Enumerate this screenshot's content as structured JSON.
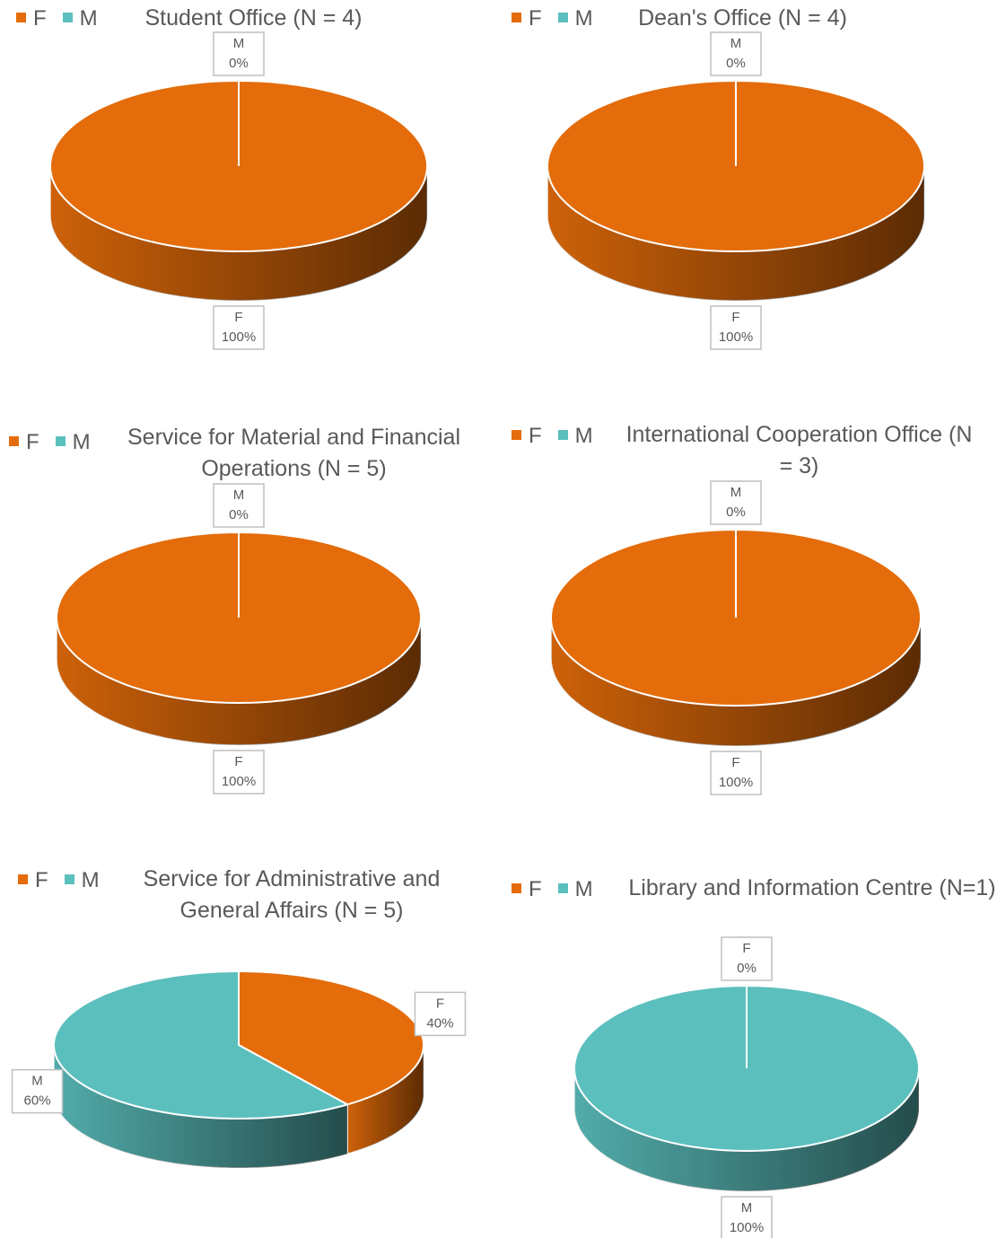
{
  "chart_data": [
    {
      "type": "pie",
      "title": "Student Office (N = 4)",
      "categories": [
        "F",
        "M"
      ],
      "values": [
        100,
        0
      ],
      "value_labels": [
        "100%",
        "0%"
      ],
      "colors": [
        "#e46c0a",
        "#5bbfbd"
      ]
    },
    {
      "type": "pie",
      "title": "Dean's Office (N = 4)",
      "categories": [
        "F",
        "M"
      ],
      "values": [
        100,
        0
      ],
      "value_labels": [
        "100%",
        "0%"
      ],
      "colors": [
        "#e46c0a",
        "#5bbfbd"
      ]
    },
    {
      "type": "pie",
      "title": "Service for Material and Financial Operations (N = 5)",
      "categories": [
        "F",
        "M"
      ],
      "values": [
        100,
        0
      ],
      "value_labels": [
        "100%",
        "0%"
      ],
      "colors": [
        "#e46c0a",
        "#5bbfbd"
      ]
    },
    {
      "type": "pie",
      "title": "International Cooperation Office (N = 3)",
      "categories": [
        "F",
        "M"
      ],
      "values": [
        100,
        0
      ],
      "value_labels": [
        "100%",
        "0%"
      ],
      "colors": [
        "#e46c0a",
        "#5bbfbd"
      ]
    },
    {
      "type": "pie",
      "title": "Service for Administrative and General Affairs (N = 5)",
      "categories": [
        "F",
        "M"
      ],
      "values": [
        40,
        60
      ],
      "value_labels": [
        "40%",
        "60%"
      ],
      "colors": [
        "#e46c0a",
        "#5bbfbd"
      ]
    },
    {
      "type": "pie",
      "title": "Library and Information Centre (N=1)",
      "categories": [
        "F",
        "M"
      ],
      "values": [
        0,
        100
      ],
      "value_labels": [
        "0%",
        "100%"
      ],
      "colors": [
        "#e46c0a",
        "#5bbfbd"
      ]
    }
  ]
}
